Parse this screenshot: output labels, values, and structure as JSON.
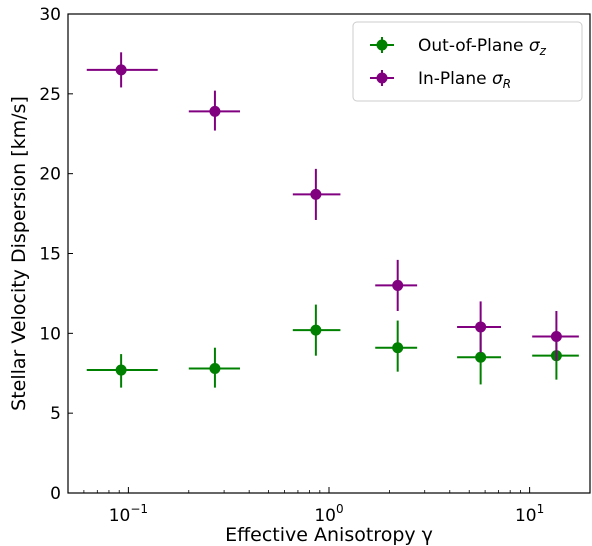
{
  "chart_data": {
    "type": "scatter",
    "title": "",
    "xlabel": "Effective Anisotropy γ",
    "ylabel": "Stellar Velocity Dispersion [km/s]",
    "xscale": "log",
    "xlim": [
      0.05,
      20
    ],
    "ylim": [
      0,
      30
    ],
    "yticks": [
      0,
      5,
      10,
      15,
      20,
      25,
      30
    ],
    "xticks": [
      {
        "value": 0.1,
        "base": "10",
        "exp": "−1"
      },
      {
        "value": 1,
        "base": "10",
        "exp": "0"
      },
      {
        "value": 10,
        "base": "10",
        "exp": "1"
      }
    ],
    "grid": false,
    "legend_position": "top-right",
    "series": [
      {
        "name": "Out-of-Plane σz",
        "legend_main": "Out-of-Plane ",
        "legend_symbol": "σ",
        "legend_sub": "z",
        "color": "#008000",
        "points": [
          {
            "x": 0.092,
            "y": 7.7,
            "xlo": 0.062,
            "xhi": 0.14,
            "ylo": 6.6,
            "yhi": 8.7
          },
          {
            "x": 0.27,
            "y": 7.8,
            "xlo": 0.2,
            "xhi": 0.36,
            "ylo": 6.6,
            "yhi": 9.1
          },
          {
            "x": 0.86,
            "y": 10.2,
            "xlo": 0.66,
            "xhi": 1.14,
            "ylo": 8.6,
            "yhi": 11.8
          },
          {
            "x": 2.2,
            "y": 9.1,
            "xlo": 1.7,
            "xhi": 2.75,
            "ylo": 7.6,
            "yhi": 10.8
          },
          {
            "x": 5.7,
            "y": 8.5,
            "xlo": 4.35,
            "xhi": 7.2,
            "ylo": 6.8,
            "yhi": 10.1
          },
          {
            "x": 13.6,
            "y": 8.6,
            "xlo": 10.3,
            "xhi": 17.6,
            "ylo": 7.1,
            "yhi": 10.1
          }
        ]
      },
      {
        "name": "In-Plane σR",
        "legend_main": "In-Plane ",
        "legend_symbol": "σ",
        "legend_sub": "R",
        "color": "#800080",
        "points": [
          {
            "x": 0.092,
            "y": 26.5,
            "xlo": 0.062,
            "xhi": 0.14,
            "ylo": 25.4,
            "yhi": 27.6
          },
          {
            "x": 0.27,
            "y": 23.9,
            "xlo": 0.2,
            "xhi": 0.36,
            "ylo": 22.7,
            "yhi": 25.2
          },
          {
            "x": 0.86,
            "y": 18.7,
            "xlo": 0.66,
            "xhi": 1.14,
            "ylo": 17.1,
            "yhi": 20.3
          },
          {
            "x": 2.2,
            "y": 13.0,
            "xlo": 1.7,
            "xhi": 2.75,
            "ylo": 11.4,
            "yhi": 14.6
          },
          {
            "x": 5.7,
            "y": 10.4,
            "xlo": 4.35,
            "xhi": 7.2,
            "ylo": 8.8,
            "yhi": 12.0
          },
          {
            "x": 13.6,
            "y": 9.8,
            "xlo": 10.3,
            "xhi": 17.6,
            "ylo": 8.3,
            "yhi": 11.4
          }
        ]
      }
    ]
  }
}
